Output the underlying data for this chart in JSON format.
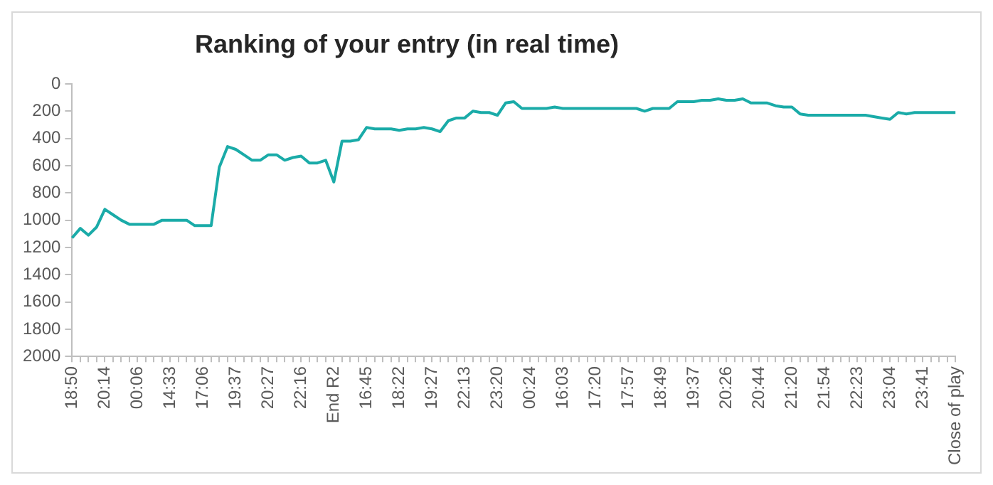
{
  "chart_data": {
    "type": "line",
    "title": "Ranking of your entry (in real time)",
    "categories": [
      "18:50",
      null,
      null,
      null,
      "20:14",
      null,
      null,
      null,
      "00:06",
      null,
      null,
      null,
      "14:33",
      null,
      null,
      null,
      "17:06",
      null,
      null,
      null,
      "19:37",
      null,
      null,
      null,
      "20:27",
      null,
      null,
      null,
      "22:16",
      null,
      null,
      null,
      "End R2",
      null,
      null,
      null,
      "16:45",
      null,
      null,
      null,
      "18:22",
      null,
      null,
      null,
      "19:27",
      null,
      null,
      null,
      "22:13",
      null,
      null,
      null,
      "23:20",
      null,
      null,
      null,
      "00:24",
      null,
      null,
      null,
      "16:03",
      null,
      null,
      null,
      "17:20",
      null,
      null,
      null,
      "17:57",
      null,
      null,
      null,
      "18:49",
      null,
      null,
      null,
      "19:37",
      null,
      null,
      null,
      "20:26",
      null,
      null,
      null,
      "20:44",
      null,
      null,
      null,
      "21:20",
      null,
      null,
      null,
      "21:54",
      null,
      null,
      null,
      "22:23",
      null,
      null,
      null,
      "23:04",
      null,
      null,
      null,
      "23:41",
      null,
      null,
      null,
      "Close of play"
    ],
    "series": [
      {
        "color": "#1aaba8",
        "values": [
          1130,
          1060,
          1110,
          1050,
          920,
          960,
          1000,
          1030,
          1030,
          1030,
          1030,
          1000,
          1000,
          1000,
          1000,
          1040,
          1040,
          1040,
          610,
          460,
          480,
          520,
          560,
          560,
          520,
          520,
          560,
          540,
          530,
          580,
          580,
          560,
          720,
          420,
          420,
          410,
          320,
          330,
          330,
          330,
          340,
          330,
          330,
          320,
          330,
          350,
          270,
          250,
          250,
          200,
          210,
          210,
          230,
          140,
          130,
          180,
          180,
          180,
          180,
          170,
          180,
          180,
          180,
          180,
          180,
          180,
          180,
          180,
          180,
          180,
          200,
          180,
          180,
          180,
          130,
          130,
          130,
          120,
          120,
          110,
          120,
          120,
          110,
          140,
          140,
          140,
          160,
          170,
          170,
          220,
          230,
          230,
          230,
          230,
          230,
          230,
          230,
          230,
          240,
          250,
          260,
          210,
          220,
          210,
          210,
          210,
          210,
          210,
          210
        ]
      }
    ],
    "ylim": [
      2000,
      0
    ],
    "yticks": [
      0,
      200,
      400,
      600,
      800,
      1000,
      1200,
      1400,
      1600,
      1800,
      2000
    ],
    "marker": "none",
    "line_style": "solid"
  }
}
